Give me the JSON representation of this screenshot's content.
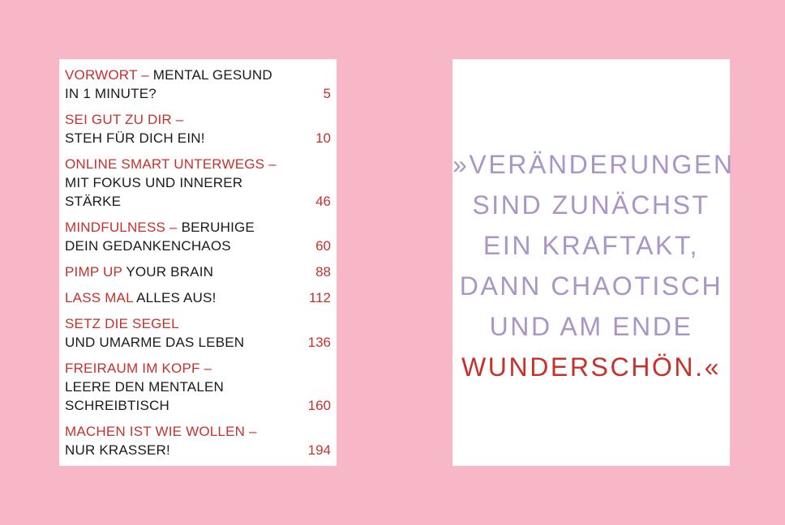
{
  "colors": {
    "background": "#f7b7c7",
    "accent_red": "#c8302c",
    "lavender": "#a995c6",
    "text": "#1a1a1a"
  },
  "toc": {
    "entries": [
      {
        "lines": [
          {
            "red": "VORWORT – ",
            "black": "MENTAL GESUND"
          },
          {
            "red": "",
            "black": "IN 1 MINUTE?"
          }
        ],
        "page": "5"
      },
      {
        "lines": [
          {
            "red": "SEI GUT ZU DIR –",
            "black": ""
          },
          {
            "red": "",
            "black": "STEH FÜR DICH EIN!"
          }
        ],
        "page": "10"
      },
      {
        "lines": [
          {
            "red": "ONLINE SMART UNTERWEGS –",
            "black": ""
          },
          {
            "red": "",
            "black": "MIT FOKUS UND INNERER"
          },
          {
            "red": "",
            "black": "STÄRKE"
          }
        ],
        "page": "46"
      },
      {
        "lines": [
          {
            "red": "MINDFULNESS – ",
            "black": "BERUHIGE"
          },
          {
            "red": "",
            "black": "DEIN GEDANKENCHAOS"
          }
        ],
        "page": "60"
      },
      {
        "lines": [
          {
            "red": "PIMP UP ",
            "black": "YOUR BRAIN"
          }
        ],
        "page": "88"
      },
      {
        "lines": [
          {
            "red": "LASS MAL ",
            "black": "ALLES AUS!"
          }
        ],
        "page": "112"
      },
      {
        "lines": [
          {
            "red": "SETZ DIE SEGEL",
            "black": ""
          },
          {
            "red": "",
            "black": "UND UMARME DAS LEBEN"
          }
        ],
        "page": "136"
      },
      {
        "lines": [
          {
            "red": "FREIRAUM IM KOPF –",
            "black": ""
          },
          {
            "red": "",
            "black": "LEERE DEN MENTALEN"
          },
          {
            "red": "",
            "black": "SCHREIBTISCH"
          }
        ],
        "page": "160"
      },
      {
        "lines": [
          {
            "red": "MACHEN IST WIE WOLLEN –",
            "black": ""
          },
          {
            "red": "",
            "black": "NUR KRASSER!"
          }
        ],
        "page": "194"
      }
    ]
  },
  "quote": {
    "lines": [
      "»VERÄNDERUNGEN",
      "SIND ZUNÄCHST",
      "EIN KRAFTAKT,",
      "DANN CHAOTISCH",
      "UND AM ENDE"
    ],
    "accent_line": "WUNDERSCHÖN.«"
  }
}
